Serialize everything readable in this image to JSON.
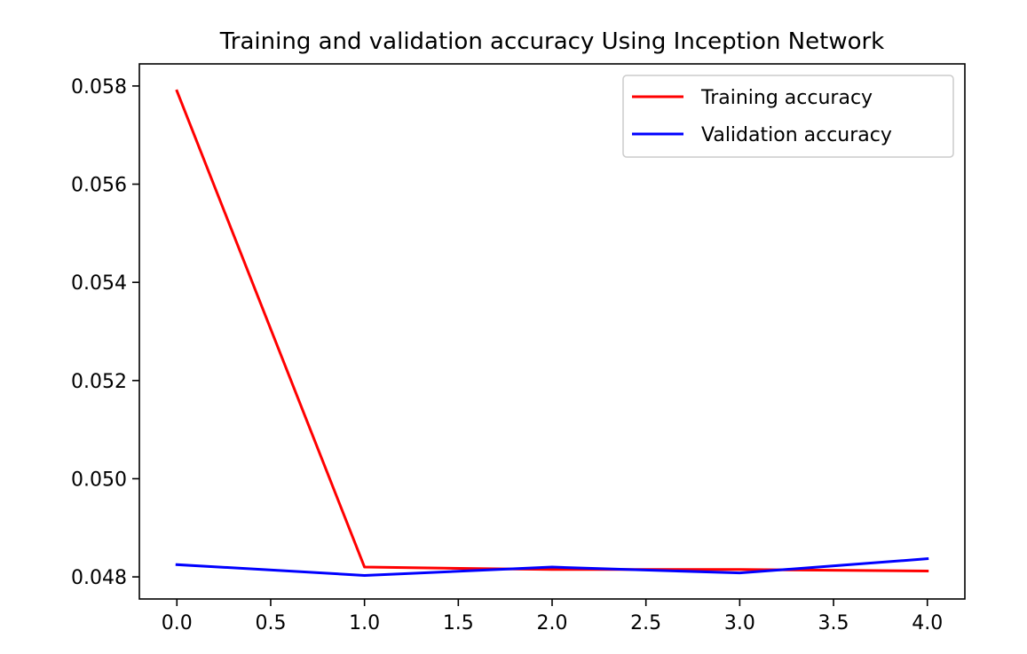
{
  "chart_data": {
    "type": "line",
    "title": "Training and validation accuracy Using Inception Network",
    "xlabel": "",
    "ylabel": "",
    "x": [
      0,
      1,
      2,
      3,
      4
    ],
    "xlim": [
      -0.2,
      4.2
    ],
    "ylim": [
      0.04755,
      0.05845
    ],
    "xticks": [
      0.0,
      0.5,
      1.0,
      1.5,
      2.0,
      2.5,
      3.0,
      3.5,
      4.0
    ],
    "xtick_labels": [
      "0.0",
      "0.5",
      "1.0",
      "1.5",
      "2.0",
      "2.5",
      "3.0",
      "3.5",
      "4.0"
    ],
    "yticks": [
      0.048,
      0.05,
      0.052,
      0.054,
      0.056,
      0.058
    ],
    "ytick_labels": [
      "0.048",
      "0.050",
      "0.052",
      "0.054",
      "0.056",
      "0.058"
    ],
    "grid": false,
    "legend_position": "top-right",
    "series": [
      {
        "name": "Training accuracy",
        "color": "#ff0000",
        "values": [
          0.0579,
          0.0482,
          0.04815,
          0.04815,
          0.04812
        ]
      },
      {
        "name": "Validation accuracy",
        "color": "#0000ff",
        "values": [
          0.04825,
          0.04803,
          0.0482,
          0.04808,
          0.04837
        ]
      }
    ]
  }
}
